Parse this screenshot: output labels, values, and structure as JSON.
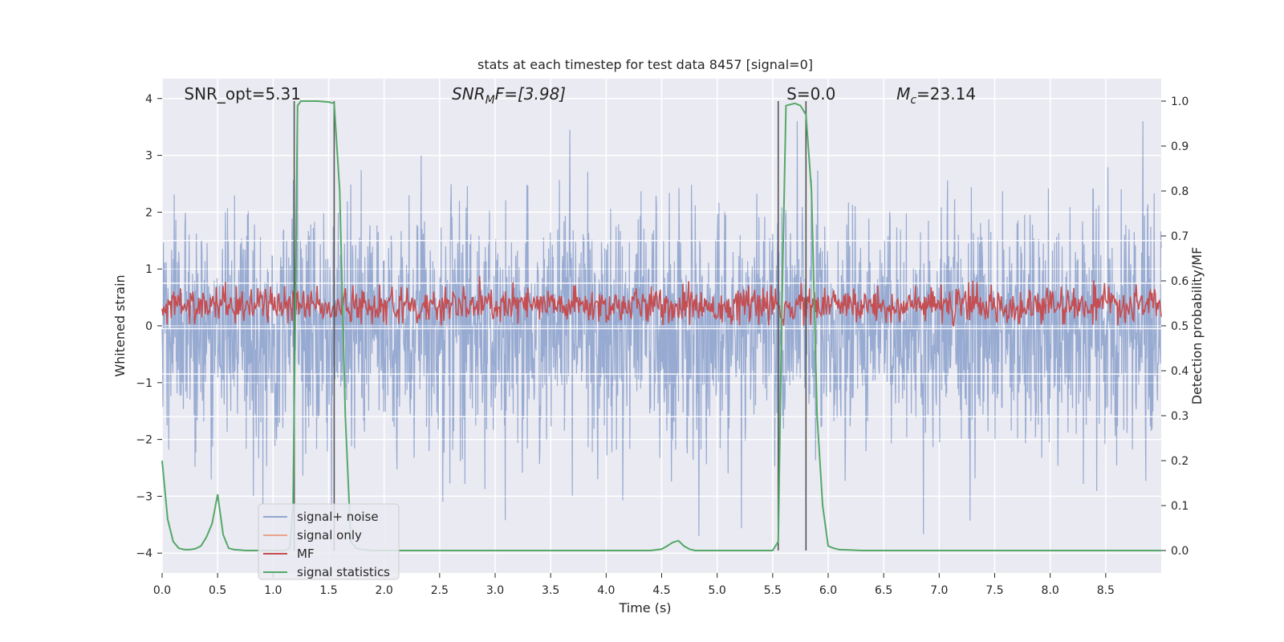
{
  "chart_data": {
    "type": "line",
    "title": "stats at each timestep for test data 8457 [signal=0]",
    "xlabel": "Time (s)",
    "ylabel": "Whitened strain",
    "y2label": "Detection probability/MF",
    "xlim": [
      0,
      9.0
    ],
    "ylim": [
      -4.35,
      4.35
    ],
    "y2lim": [
      -0.05,
      1.05
    ],
    "grid": true,
    "legend_position": "lower-left",
    "x_ticks": [
      0.0,
      0.5,
      1.0,
      1.5,
      2.0,
      2.5,
      3.0,
      3.5,
      4.0,
      4.5,
      5.0,
      5.5,
      6.0,
      6.5,
      7.0,
      7.5,
      8.0,
      8.5
    ],
    "x_tick_labels": [
      "0.0",
      "0.5",
      "1.0",
      "1.5",
      "2.0",
      "2.5",
      "3.0",
      "3.5",
      "4.0",
      "4.5",
      "5.0",
      "5.5",
      "6.0",
      "6.5",
      "7.0",
      "7.5",
      "8.0",
      "8.5"
    ],
    "y_ticks": [
      4,
      3,
      2,
      1,
      0,
      -1,
      -2,
      -3,
      -4
    ],
    "y_tick_labels": [
      "4",
      "3",
      "2",
      "1",
      "0",
      "−1",
      "−2",
      "−3",
      "−4"
    ],
    "y2_ticks": [
      1.0,
      0.9,
      0.8,
      0.7,
      0.6,
      0.5,
      0.4,
      0.3,
      0.2,
      0.1,
      0.0
    ],
    "y2_tick_labels": [
      "1.0",
      "0.9",
      "0.8",
      "0.7",
      "0.6",
      "0.5",
      "0.4",
      "0.3",
      "0.2",
      "0.1",
      "0.0"
    ],
    "annotations": [
      {
        "id": "snr-opt",
        "x_frac": 0.022,
        "text": "SNR_opt=5.31"
      },
      {
        "id": "snr-mf",
        "x_frac": 0.29,
        "text": "SNR",
        "sub": "M",
        "tail": "F=[3.98]"
      },
      {
        "id": "s-value",
        "x_frac": 0.625,
        "text": "S=0.0"
      },
      {
        "id": "mc-value",
        "x_frac": 0.735,
        "text": "M",
        "sub": "c",
        "tail": "=23.14"
      }
    ],
    "legend": [
      {
        "label": "signal+ noise",
        "color": "#92a6cf"
      },
      {
        "label": "signal only",
        "color": "#e8a48a"
      },
      {
        "label": "MF",
        "color": "#c44e52"
      },
      {
        "label": "signal statistics",
        "color": "#55a868"
      }
    ],
    "series": [
      {
        "name": "signal+ noise",
        "color": "#92a6cf",
        "axis": "left",
        "summary": "dense noise trace, amplitude roughly within -3.7 to 3.6"
      },
      {
        "name": "signal only",
        "color": "#e8a48a",
        "axis": "left",
        "values": []
      },
      {
        "name": "MF",
        "color": "#c44e52",
        "axis": "left",
        "summary": "fluctuates around 0.35, between about 0.0 and 0.9"
      },
      {
        "name": "signal statistics",
        "color": "#55a868",
        "axis": "right",
        "x": [
          0.0,
          0.05,
          0.1,
          0.15,
          0.2,
          0.25,
          0.3,
          0.35,
          0.4,
          0.45,
          0.5,
          0.55,
          0.6,
          0.65,
          0.7,
          0.75,
          0.8,
          0.9,
          1.0,
          1.1,
          1.15,
          1.18,
          1.22,
          1.25,
          1.3,
          1.4,
          1.5,
          1.55,
          1.6,
          1.65,
          1.7,
          1.75,
          1.8,
          1.9,
          2.0,
          3.0,
          4.0,
          4.4,
          4.5,
          4.55,
          4.6,
          4.65,
          4.7,
          4.75,
          4.8,
          4.9,
          5.0,
          5.5,
          5.55,
          5.58,
          5.62,
          5.7,
          5.75,
          5.8,
          5.85,
          5.9,
          5.95,
          6.0,
          6.05,
          6.1,
          6.2,
          6.3,
          7.0,
          8.0,
          9.0
        ],
        "values": [
          0.2,
          0.07,
          0.02,
          0.005,
          0.002,
          0.002,
          0.004,
          0.01,
          0.03,
          0.06,
          0.125,
          0.035,
          0.005,
          0.002,
          0.001,
          0.0,
          0.0,
          0.0,
          0.0,
          0.0,
          0.005,
          0.1,
          0.99,
          1.0,
          1.0,
          1.0,
          0.998,
          0.995,
          0.8,
          0.3,
          0.02,
          0.005,
          0.002,
          0.0,
          0.0,
          0.0,
          0.0,
          0.0,
          0.003,
          0.01,
          0.018,
          0.022,
          0.01,
          0.003,
          0.0,
          0.0,
          0.0,
          0.0,
          0.02,
          0.5,
          0.99,
          0.995,
          0.99,
          0.97,
          0.8,
          0.3,
          0.1,
          0.01,
          0.005,
          0.002,
          0.001,
          0.0,
          0.0,
          0.0,
          0.0
        ]
      }
    ],
    "vertical_markers": [
      1.19,
      1.55,
      5.55,
      5.8
    ]
  }
}
